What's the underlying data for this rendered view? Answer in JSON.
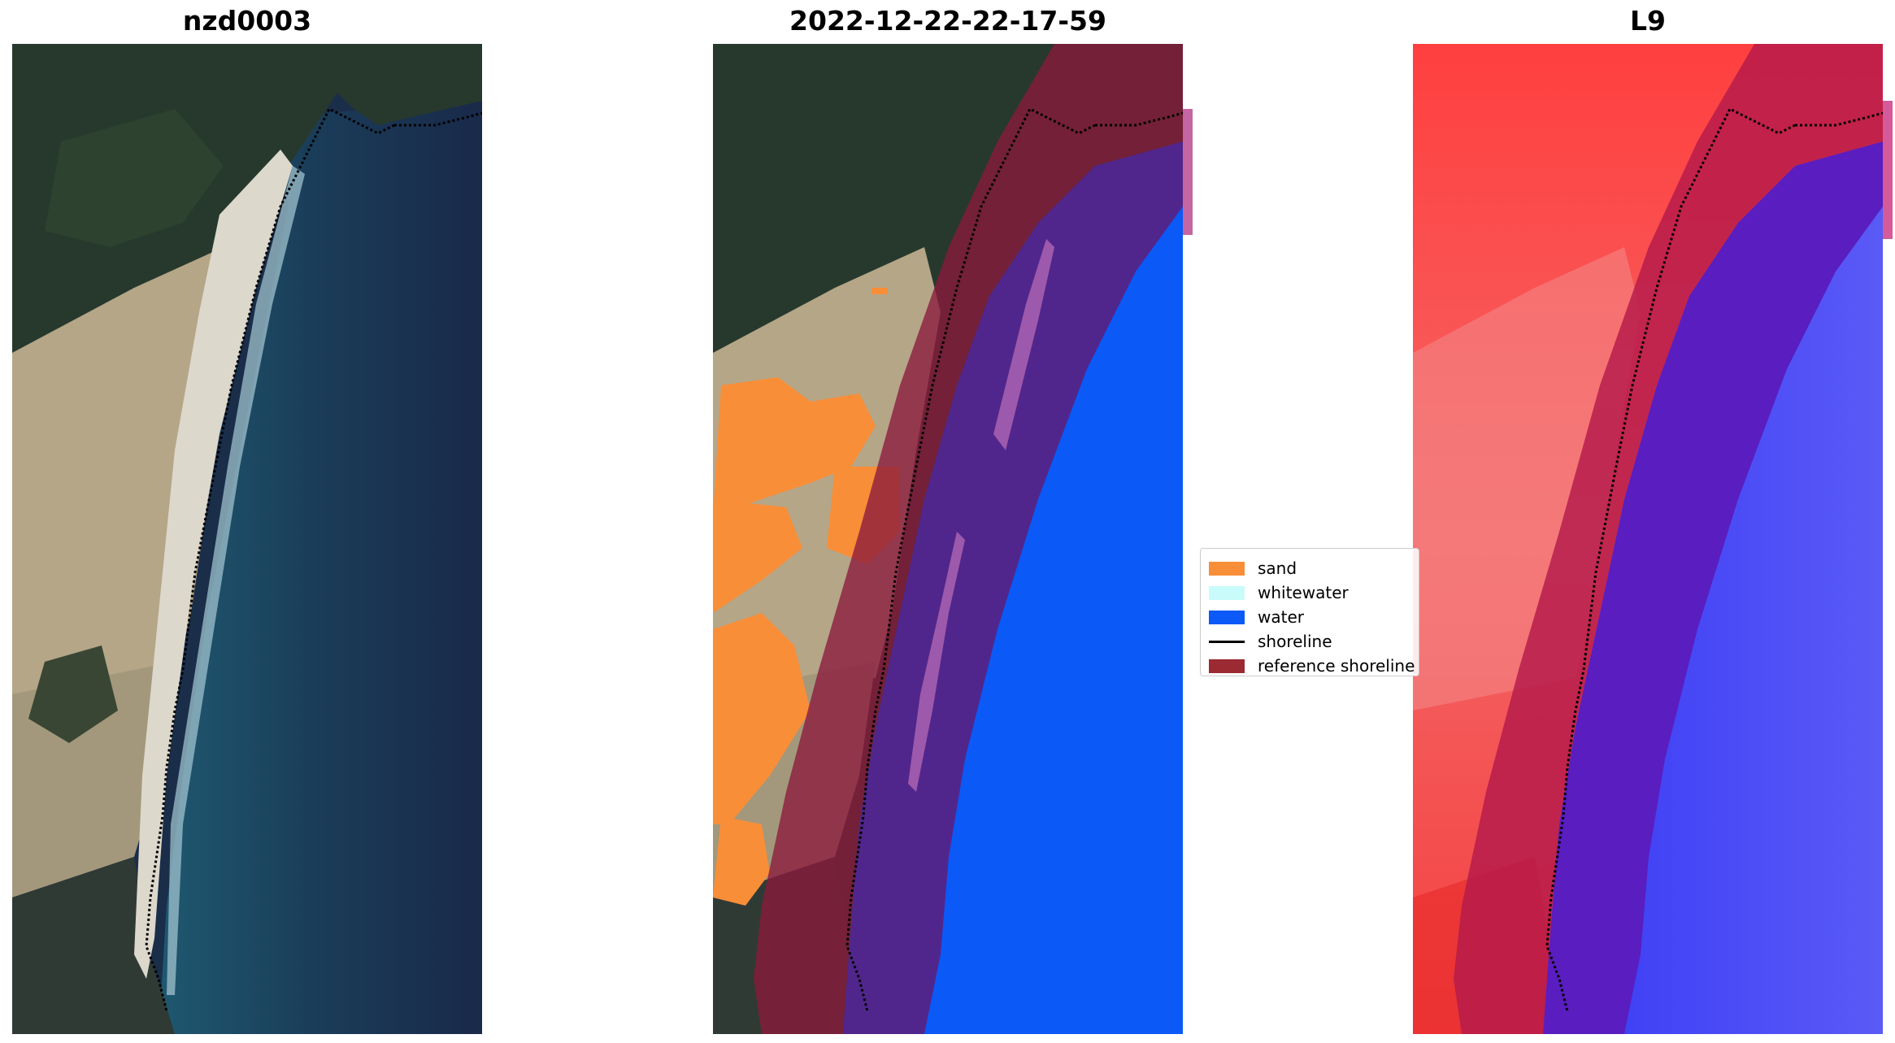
{
  "panels": [
    {
      "title": "nzd0003"
    },
    {
      "title": "2022-12-22-22-17-59"
    },
    {
      "title": "L9"
    }
  ],
  "legend": {
    "items": [
      {
        "label": "sand",
        "color": "#f98e38"
      },
      {
        "label": "whitewater",
        "color": "#c8fcfa"
      },
      {
        "label": "water",
        "color": "#0b59f7"
      },
      {
        "label": "shoreline",
        "color": "#000000"
      },
      {
        "label": "reference shoreline",
        "color": "#9b2a32"
      }
    ]
  },
  "colors": {
    "sea": "#1b3a55",
    "forest": "#25382a",
    "dunes": "#b8a88a",
    "beach": "#d8d2c6",
    "buffer": "#8b1a3c",
    "index_land": "#f53b3b",
    "index_water": "#3f44f2"
  }
}
